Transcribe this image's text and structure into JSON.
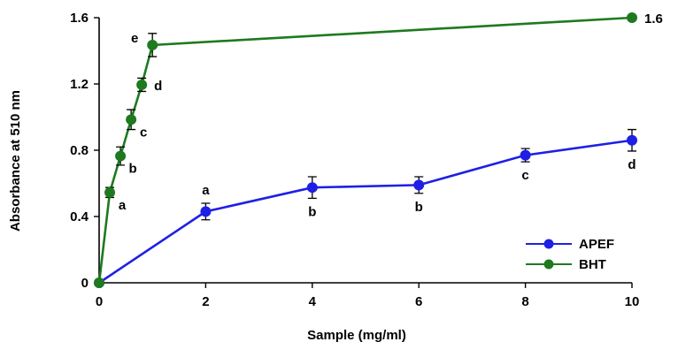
{
  "chart_data": {
    "type": "line",
    "xlabel": "Sample (mg/ml)",
    "ylabel": "Absorbance at 510 nm",
    "xlim": [
      0,
      10
    ],
    "ylim": [
      0,
      1.6
    ],
    "x_ticks": [
      "0",
      "2",
      "4",
      "6",
      "8",
      "10"
    ],
    "y_ticks": [
      "0",
      "0.4",
      "0.8",
      "1.2",
      "1.6"
    ],
    "legend_position": "bottom-right",
    "series": [
      {
        "name": "APEF",
        "color": "#1f1fe6",
        "x": [
          0,
          2,
          4,
          6,
          8,
          10
        ],
        "y": [
          0,
          0.43,
          0.575,
          0.59,
          0.77,
          0.86
        ],
        "err": [
          0,
          0.05,
          0.065,
          0.05,
          0.04,
          0.065
        ],
        "labels": [
          "",
          "a",
          "b",
          "b",
          "c",
          "d"
        ],
        "label_pos": [
          "",
          "above",
          "below",
          "below",
          "below",
          "below"
        ]
      },
      {
        "name": "BHT",
        "color": "#1e7a1e",
        "x": [
          0,
          0.2,
          0.4,
          0.6,
          0.8,
          1,
          10
        ],
        "y": [
          0,
          0.545,
          0.765,
          0.985,
          1.195,
          1.435,
          1.6
        ],
        "err": [
          0,
          0.03,
          0.055,
          0.06,
          0.04,
          0.07,
          0
        ],
        "labels": [
          "",
          "a",
          "b",
          "c",
          "d",
          "e",
          "1.6"
        ],
        "label_pos": [
          "",
          "right-low",
          "right-low",
          "right-low",
          "right",
          "left-high",
          "right"
        ]
      }
    ]
  }
}
